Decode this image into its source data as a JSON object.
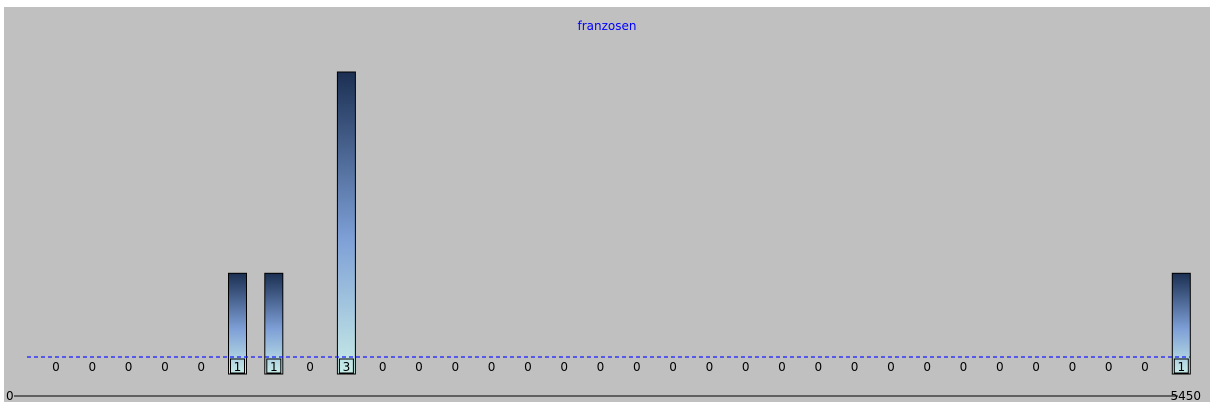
{
  "chart_data": {
    "type": "bar",
    "title": "franzosen",
    "x_axis": {
      "min_label": "0",
      "max_label": "5450"
    },
    "values": [
      0,
      0,
      0,
      0,
      0,
      1,
      1,
      0,
      3,
      0,
      0,
      0,
      0,
      0,
      0,
      0,
      0,
      0,
      0,
      0,
      0,
      0,
      0,
      0,
      0,
      0,
      0,
      0,
      0,
      0,
      0,
      1,
      0
    ],
    "baseline_value": 0,
    "ylim": [
      0,
      3
    ],
    "colors": {
      "bar_top": "#1b2f52",
      "bar_mid": "#7d9fd6",
      "bar_bottom": "#c8ece7",
      "baseline": "#1a1aff",
      "background": "#c0c0c0"
    }
  }
}
